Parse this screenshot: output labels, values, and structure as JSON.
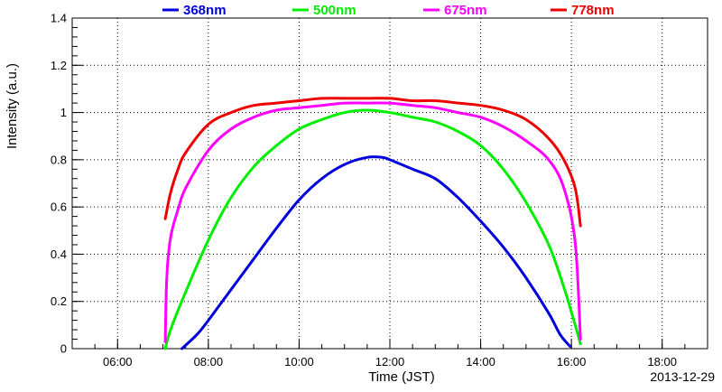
{
  "chart_data": {
    "type": "line",
    "title": "",
    "xlabel": "Time (JST)",
    "ylabel": "Intensity (a.u.)",
    "date": "2013-12-29",
    "xlim": [
      "05:00",
      "19:00"
    ],
    "ylim": [
      0,
      1.4
    ],
    "grid": true,
    "legend_position": "top",
    "x_ticks": [
      "06:00",
      "08:00",
      "10:00",
      "12:00",
      "14:00",
      "16:00",
      "18:00"
    ],
    "y_ticks": [
      "0",
      "0.2",
      "0.4",
      "0.6",
      "0.8",
      "1",
      "1.2",
      "1.4"
    ],
    "series": [
      {
        "name": "368nm",
        "color": "#0000dd",
        "points": [
          [
            "07:25",
            0.0
          ],
          [
            "07:45",
            0.06
          ],
          [
            "08:00",
            0.12
          ],
          [
            "08:30",
            0.25
          ],
          [
            "09:00",
            0.38
          ],
          [
            "09:30",
            0.51
          ],
          [
            "10:00",
            0.63
          ],
          [
            "10:30",
            0.72
          ],
          [
            "11:00",
            0.78
          ],
          [
            "11:30",
            0.81
          ],
          [
            "11:50",
            0.81
          ],
          [
            "12:00",
            0.8
          ],
          [
            "12:30",
            0.76
          ],
          [
            "13:00",
            0.72
          ],
          [
            "13:30",
            0.64
          ],
          [
            "14:00",
            0.54
          ],
          [
            "14:30",
            0.43
          ],
          [
            "15:00",
            0.3
          ],
          [
            "15:30",
            0.15
          ],
          [
            "15:45",
            0.06
          ],
          [
            "15:58",
            0.01
          ]
        ]
      },
      {
        "name": "500nm",
        "color": "#00ee00",
        "points": [
          [
            "07:03",
            0.0
          ],
          [
            "07:10",
            0.08
          ],
          [
            "07:30",
            0.24
          ],
          [
            "08:00",
            0.46
          ],
          [
            "08:30",
            0.64
          ],
          [
            "09:00",
            0.77
          ],
          [
            "09:30",
            0.86
          ],
          [
            "10:00",
            0.93
          ],
          [
            "10:30",
            0.97
          ],
          [
            "11:00",
            1.0
          ],
          [
            "11:30",
            1.01
          ],
          [
            "12:00",
            1.0
          ],
          [
            "12:30",
            0.98
          ],
          [
            "13:00",
            0.96
          ],
          [
            "13:30",
            0.92
          ],
          [
            "14:00",
            0.86
          ],
          [
            "14:30",
            0.76
          ],
          [
            "15:00",
            0.62
          ],
          [
            "15:30",
            0.44
          ],
          [
            "15:50",
            0.26
          ],
          [
            "16:05",
            0.1
          ],
          [
            "16:12",
            0.02
          ]
        ]
      },
      {
        "name": "675nm",
        "color": "#ff00ff",
        "points": [
          [
            "07:03",
            0.03
          ],
          [
            "07:05",
            0.3
          ],
          [
            "07:10",
            0.47
          ],
          [
            "07:20",
            0.59
          ],
          [
            "07:30",
            0.68
          ],
          [
            "08:00",
            0.84
          ],
          [
            "08:30",
            0.93
          ],
          [
            "09:00",
            0.98
          ],
          [
            "09:30",
            1.01
          ],
          [
            "10:00",
            1.02
          ],
          [
            "10:30",
            1.03
          ],
          [
            "11:00",
            1.04
          ],
          [
            "11:30",
            1.04
          ],
          [
            "12:00",
            1.04
          ],
          [
            "12:30",
            1.03
          ],
          [
            "13:00",
            1.02
          ],
          [
            "13:30",
            1.0
          ],
          [
            "14:00",
            0.98
          ],
          [
            "14:30",
            0.94
          ],
          [
            "15:00",
            0.88
          ],
          [
            "15:30",
            0.8
          ],
          [
            "15:50",
            0.68
          ],
          [
            "16:05",
            0.45
          ],
          [
            "16:12",
            0.04
          ]
        ]
      },
      {
        "name": "778nm",
        "color": "#ee0000",
        "points": [
          [
            "07:03",
            0.55
          ],
          [
            "07:10",
            0.66
          ],
          [
            "07:20",
            0.76
          ],
          [
            "07:30",
            0.83
          ],
          [
            "08:00",
            0.95
          ],
          [
            "08:30",
            1.0
          ],
          [
            "09:00",
            1.03
          ],
          [
            "09:30",
            1.04
          ],
          [
            "10:00",
            1.05
          ],
          [
            "10:30",
            1.06
          ],
          [
            "11:00",
            1.06
          ],
          [
            "11:30",
            1.06
          ],
          [
            "12:00",
            1.06
          ],
          [
            "12:30",
            1.05
          ],
          [
            "13:00",
            1.05
          ],
          [
            "13:30",
            1.04
          ],
          [
            "14:00",
            1.03
          ],
          [
            "14:30",
            1.01
          ],
          [
            "15:00",
            0.97
          ],
          [
            "15:30",
            0.89
          ],
          [
            "15:50",
            0.8
          ],
          [
            "16:05",
            0.68
          ],
          [
            "16:12",
            0.52
          ]
        ]
      }
    ]
  }
}
